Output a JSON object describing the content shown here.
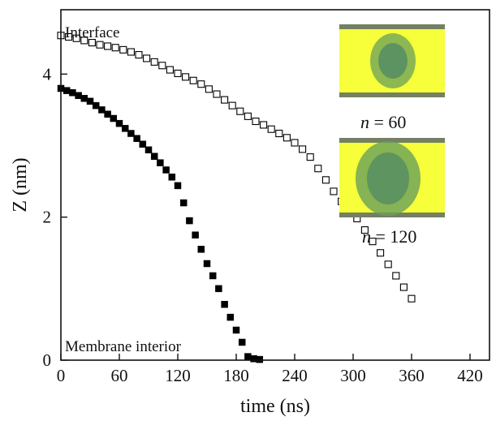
{
  "chart_data": {
    "type": "scatter",
    "title": "",
    "xlabel": "time (ns)",
    "ylabel": "Z (nm)",
    "xlim": [
      0,
      440
    ],
    "ylim": [
      0,
      4.9
    ],
    "xticks": [
      0,
      60,
      120,
      180,
      240,
      300,
      360,
      420
    ],
    "yticks": [
      0,
      2,
      4
    ],
    "grid": false,
    "annotations": {
      "top": "Interface",
      "bottom": "Membrane interior",
      "inset_top": {
        "var": "n",
        "rest": " = 60"
      },
      "inset_bottom": {
        "var": "n",
        "rest": " = 120"
      }
    },
    "series": [
      {
        "marker": "filled-square",
        "x": [
          0,
          6,
          12,
          18,
          24,
          30,
          36,
          42,
          48,
          54,
          60,
          66,
          72,
          78,
          84,
          90,
          96,
          102,
          108,
          114,
          120,
          126,
          132,
          138,
          144,
          150,
          156,
          162,
          168,
          174,
          180,
          186,
          192,
          198,
          204
        ],
        "y": [
          3.8,
          3.77,
          3.74,
          3.7,
          3.66,
          3.62,
          3.56,
          3.5,
          3.44,
          3.38,
          3.31,
          3.24,
          3.17,
          3.1,
          3.02,
          2.94,
          2.85,
          2.76,
          2.66,
          2.56,
          2.44,
          2.2,
          1.95,
          1.75,
          1.55,
          1.35,
          1.18,
          1.0,
          0.78,
          0.6,
          0.42,
          0.25,
          0.05,
          0.02,
          0.01
        ]
      },
      {
        "marker": "open-square",
        "x": [
          0,
          8,
          16,
          24,
          32,
          40,
          48,
          56,
          64,
          72,
          80,
          88,
          96,
          104,
          112,
          120,
          128,
          136,
          144,
          152,
          160,
          168,
          176,
          184,
          192,
          200,
          208,
          216,
          224,
          232,
          240,
          248,
          256,
          264,
          272,
          280,
          288,
          296,
          304,
          312,
          320,
          328,
          336,
          344,
          352,
          360
        ],
        "y": [
          4.54,
          4.52,
          4.5,
          4.47,
          4.44,
          4.41,
          4.39,
          4.37,
          4.34,
          4.31,
          4.27,
          4.22,
          4.17,
          4.12,
          4.06,
          4.01,
          3.96,
          3.91,
          3.86,
          3.79,
          3.72,
          3.64,
          3.56,
          3.48,
          3.41,
          3.34,
          3.29,
          3.23,
          3.17,
          3.11,
          3.04,
          2.95,
          2.84,
          2.68,
          2.52,
          2.36,
          2.22,
          2.12,
          1.98,
          1.82,
          1.66,
          1.5,
          1.34,
          1.18,
          1.02,
          0.86
        ]
      }
    ]
  }
}
